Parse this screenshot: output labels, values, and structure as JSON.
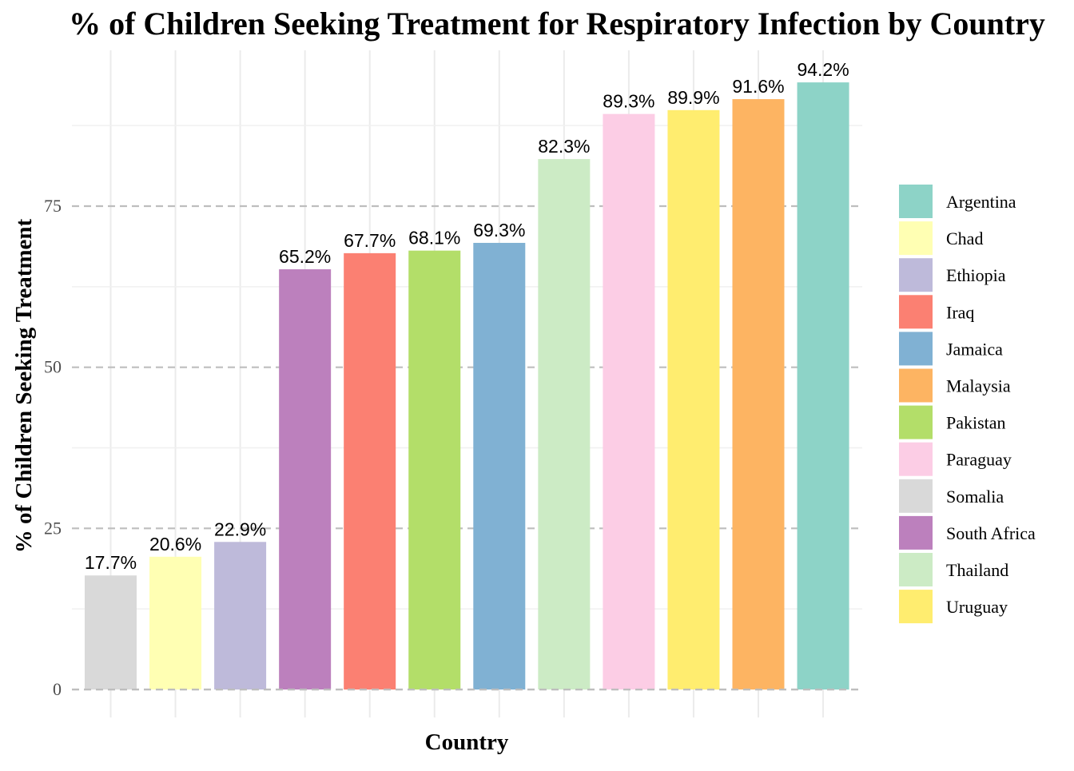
{
  "chart_data": {
    "type": "bar",
    "title": "% of Children Seeking Treatment for Respiratory Infection by Country",
    "xlabel": "Country",
    "ylabel": "% of Children Seeking Treatment",
    "ylim": [
      0,
      98
    ],
    "yticks": [
      0,
      25,
      50,
      75
    ],
    "grid": true,
    "legend_position": "right",
    "categories": [
      "Somalia",
      "Chad",
      "Ethiopia",
      "South Africa",
      "Iraq",
      "Pakistan",
      "Jamaica",
      "Thailand",
      "Paraguay",
      "Uruguay",
      "Malaysia",
      "Argentina"
    ],
    "values": [
      17.7,
      20.6,
      22.9,
      65.2,
      67.7,
      68.1,
      69.3,
      82.3,
      89.3,
      89.9,
      91.6,
      94.2
    ],
    "data_labels": [
      "17.7%",
      "20.6%",
      "22.9%",
      "65.2%",
      "67.7%",
      "68.1%",
      "69.3%",
      "82.3%",
      "89.3%",
      "89.9%",
      "91.6%",
      "94.2%"
    ],
    "colors": {
      "Argentina": "#8DD3C7",
      "Chad": "#FFFFB3",
      "Ethiopia": "#BEBADA",
      "Iraq": "#FB8072",
      "Jamaica": "#80B1D3",
      "Malaysia": "#FDB462",
      "Pakistan": "#B3DE69",
      "Paraguay": "#FCCDE5",
      "Somalia": "#D9D9D9",
      "South Africa": "#BC80BD",
      "Thailand": "#CCEBC5",
      "Uruguay": "#FFED6F"
    },
    "legend": [
      "Argentina",
      "Chad",
      "Ethiopia",
      "Iraq",
      "Jamaica",
      "Malaysia",
      "Pakistan",
      "Paraguay",
      "Somalia",
      "South Africa",
      "Thailand",
      "Uruguay"
    ]
  }
}
